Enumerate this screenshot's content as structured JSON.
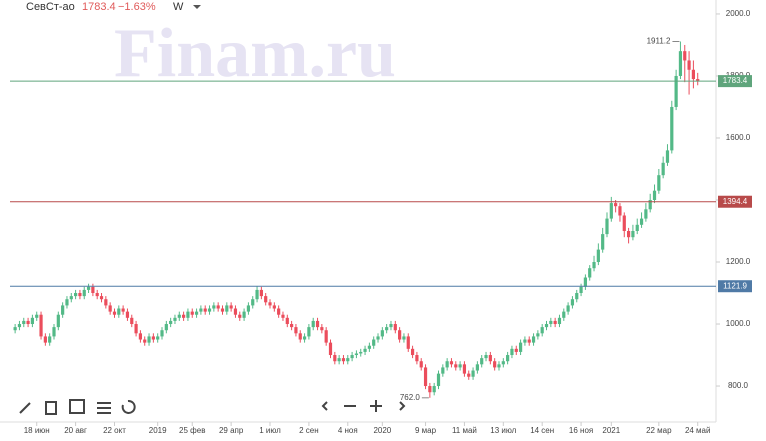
{
  "chart_data": {
    "type": "candlestick",
    "ticker": "СевСт-ао",
    "price": 1783.4,
    "change": "−1.63%",
    "interval": "W",
    "watermark": "Finam.ru",
    "up_color": "#53b987",
    "down_color": "#eb4d5c",
    "ylim": [
      684,
      2045
    ],
    "yticks": [
      {
        "value": 800,
        "label": "800.0"
      },
      {
        "value": 1000,
        "label": "1000.0"
      },
      {
        "value": 1200,
        "label": "1200.0"
      },
      {
        "value": 1400,
        "label": "1400.0"
      },
      {
        "value": 1600,
        "label": "1600.0"
      },
      {
        "value": 1800,
        "label": "1800.0"
      },
      {
        "value": 2000,
        "label": "2000.0"
      }
    ],
    "xlim": [
      -3.5,
      162
    ],
    "xticks": [
      {
        "value": 5,
        "label": "18 июн"
      },
      {
        "value": 14,
        "label": "20 авг"
      },
      {
        "value": 23,
        "label": "22 окт"
      },
      {
        "value": 33,
        "label": "2019"
      },
      {
        "value": 41,
        "label": "25 фев"
      },
      {
        "value": 50,
        "label": "29 апр"
      },
      {
        "value": 59,
        "label": "1 июл"
      },
      {
        "value": 68,
        "label": "2 сен"
      },
      {
        "value": 77,
        "label": "4 ноя"
      },
      {
        "value": 85,
        "label": "2020"
      },
      {
        "value": 95,
        "label": "9 мар"
      },
      {
        "value": 104,
        "label": "11 май"
      },
      {
        "value": 113,
        "label": "13 июл"
      },
      {
        "value": 122,
        "label": "14 сен"
      },
      {
        "value": 131,
        "label": "16 ноя"
      },
      {
        "value": 138,
        "label": "2021"
      },
      {
        "value": 149,
        "label": "22 мар"
      },
      {
        "value": 158,
        "label": "24 май"
      }
    ],
    "levels": [
      {
        "value": 1783.4,
        "color": "#5fa57c"
      },
      {
        "value": 1394.4,
        "color": "#b84a4a"
      },
      {
        "value": 1121.9,
        "color": "#4f7aa6"
      }
    ],
    "annotations": [
      {
        "index": 154,
        "value": 1911.2
      },
      {
        "index": 96,
        "value": {
          "value": 762,
          "label": "762.0"
        }
      }
    ],
    "ohlc": [
      [
        980,
        1000,
        970,
        990
      ],
      [
        990,
        1010,
        980,
        1000
      ],
      [
        1000,
        1020,
        990,
        1010
      ],
      [
        1010,
        1020,
        990,
        1000
      ],
      [
        1000,
        1030,
        990,
        1020
      ],
      [
        1020,
        1040,
        1010,
        1030
      ],
      [
        1030,
        1040,
        950,
        960
      ],
      [
        960,
        970,
        930,
        940
      ],
      [
        940,
        970,
        930,
        960
      ],
      [
        960,
        1000,
        950,
        990
      ],
      [
        990,
        1040,
        980,
        1030
      ],
      [
        1030,
        1070,
        1020,
        1060
      ],
      [
        1060,
        1090,
        1050,
        1080
      ],
      [
        1080,
        1100,
        1070,
        1090
      ],
      [
        1090,
        1110,
        1080,
        1100
      ],
      [
        1100,
        1110,
        1080,
        1090
      ],
      [
        1090,
        1120,
        1080,
        1110
      ],
      [
        1110,
        1130,
        1100,
        1120
      ],
      [
        1120,
        1130,
        1090,
        1100
      ],
      [
        1100,
        1110,
        1080,
        1090
      ],
      [
        1090,
        1100,
        1070,
        1080
      ],
      [
        1080,
        1090,
        1050,
        1060
      ],
      [
        1060,
        1070,
        1030,
        1040
      ],
      [
        1040,
        1050,
        1020,
        1030
      ],
      [
        1030,
        1060,
        1020,
        1050
      ],
      [
        1050,
        1060,
        1030,
        1040
      ],
      [
        1040,
        1050,
        1010,
        1020
      ],
      [
        1020,
        1030,
        990,
        1000
      ],
      [
        1000,
        1010,
        960,
        970
      ],
      [
        970,
        980,
        940,
        950
      ],
      [
        950,
        960,
        930,
        940
      ],
      [
        940,
        970,
        930,
        960
      ],
      [
        960,
        970,
        940,
        950
      ],
      [
        950,
        970,
        940,
        960
      ],
      [
        960,
        990,
        950,
        980
      ],
      [
        980,
        1010,
        970,
        1000
      ],
      [
        1000,
        1020,
        990,
        1010
      ],
      [
        1010,
        1030,
        1000,
        1020
      ],
      [
        1020,
        1040,
        1010,
        1030
      ],
      [
        1030,
        1040,
        1010,
        1020
      ],
      [
        1020,
        1050,
        1010,
        1040
      ],
      [
        1040,
        1050,
        1020,
        1030
      ],
      [
        1030,
        1050,
        1020,
        1040
      ],
      [
        1040,
        1060,
        1030,
        1050
      ],
      [
        1050,
        1060,
        1030,
        1040
      ],
      [
        1040,
        1060,
        1030,
        1050
      ],
      [
        1050,
        1070,
        1040,
        1060
      ],
      [
        1060,
        1070,
        1040,
        1050
      ],
      [
        1050,
        1060,
        1030,
        1040
      ],
      [
        1040,
        1070,
        1030,
        1060
      ],
      [
        1060,
        1070,
        1040,
        1050
      ],
      [
        1050,
        1060,
        1020,
        1030
      ],
      [
        1030,
        1040,
        1010,
        1020
      ],
      [
        1020,
        1050,
        1010,
        1040
      ],
      [
        1040,
        1070,
        1030,
        1060
      ],
      [
        1060,
        1090,
        1050,
        1080
      ],
      [
        1080,
        1122,
        1070,
        1110
      ],
      [
        1110,
        1120,
        1080,
        1090
      ],
      [
        1090,
        1100,
        1060,
        1070
      ],
      [
        1070,
        1080,
        1050,
        1060
      ],
      [
        1060,
        1070,
        1040,
        1050
      ],
      [
        1050,
        1060,
        1020,
        1030
      ],
      [
        1030,
        1040,
        1010,
        1020
      ],
      [
        1020,
        1030,
        990,
        1000
      ],
      [
        1000,
        1010,
        980,
        990
      ],
      [
        990,
        1000,
        960,
        970
      ],
      [
        970,
        980,
        940,
        950
      ],
      [
        950,
        970,
        940,
        960
      ],
      [
        960,
        1000,
        950,
        990
      ],
      [
        990,
        1020,
        980,
        1010
      ],
      [
        1010,
        1020,
        980,
        990
      ],
      [
        990,
        1000,
        970,
        980
      ],
      [
        980,
        990,
        930,
        940
      ],
      [
        940,
        950,
        890,
        900
      ],
      [
        900,
        910,
        870,
        880
      ],
      [
        880,
        900,
        870,
        890
      ],
      [
        890,
        900,
        870,
        880
      ],
      [
        880,
        900,
        870,
        890
      ],
      [
        890,
        910,
        880,
        900
      ],
      [
        900,
        915,
        890,
        905
      ],
      [
        905,
        920,
        895,
        910
      ],
      [
        910,
        930,
        900,
        920
      ],
      [
        920,
        940,
        910,
        930
      ],
      [
        930,
        960,
        920,
        950
      ],
      [
        950,
        970,
        940,
        960
      ],
      [
        960,
        990,
        950,
        980
      ],
      [
        980,
        1000,
        970,
        990
      ],
      [
        990,
        1010,
        980,
        1000
      ],
      [
        1000,
        1010,
        970,
        980
      ],
      [
        980,
        990,
        940,
        950
      ],
      [
        950,
        970,
        940,
        960
      ],
      [
        960,
        970,
        910,
        920
      ],
      [
        920,
        930,
        890,
        900
      ],
      [
        900,
        910,
        870,
        880
      ],
      [
        880,
        890,
        850,
        860
      ],
      [
        860,
        870,
        790,
        800
      ],
      [
        800,
        810,
        762,
        780
      ],
      [
        780,
        810,
        770,
        800
      ],
      [
        800,
        850,
        790,
        840
      ],
      [
        840,
        870,
        830,
        860
      ],
      [
        860,
        890,
        850,
        880
      ],
      [
        880,
        890,
        860,
        870
      ],
      [
        870,
        880,
        850,
        860
      ],
      [
        860,
        880,
        850,
        870
      ],
      [
        870,
        880,
        830,
        840
      ],
      [
        840,
        850,
        820,
        830
      ],
      [
        830,
        860,
        820,
        850
      ],
      [
        850,
        880,
        840,
        870
      ],
      [
        870,
        900,
        860,
        890
      ],
      [
        890,
        910,
        880,
        900
      ],
      [
        900,
        910,
        870,
        880
      ],
      [
        880,
        890,
        850,
        860
      ],
      [
        860,
        880,
        850,
        870
      ],
      [
        870,
        890,
        860,
        880
      ],
      [
        880,
        910,
        870,
        900
      ],
      [
        900,
        930,
        890,
        920
      ],
      [
        920,
        930,
        900,
        910
      ],
      [
        910,
        950,
        900,
        940
      ],
      [
        940,
        960,
        930,
        950
      ],
      [
        950,
        960,
        930,
        940
      ],
      [
        940,
        970,
        930,
        960
      ],
      [
        960,
        980,
        950,
        970
      ],
      [
        970,
        1000,
        960,
        990
      ],
      [
        990,
        1010,
        980,
        1000
      ],
      [
        1000,
        1020,
        990,
        1010
      ],
      [
        1010,
        1020,
        990,
        1000
      ],
      [
        1000,
        1030,
        990,
        1020
      ],
      [
        1020,
        1050,
        1010,
        1040
      ],
      [
        1040,
        1070,
        1030,
        1060
      ],
      [
        1060,
        1090,
        1050,
        1080
      ],
      [
        1080,
        1110,
        1070,
        1100
      ],
      [
        1100,
        1130,
        1090,
        1120
      ],
      [
        1120,
        1160,
        1110,
        1150
      ],
      [
        1150,
        1190,
        1140,
        1180
      ],
      [
        1180,
        1220,
        1170,
        1200
      ],
      [
        1200,
        1260,
        1190,
        1240
      ],
      [
        1240,
        1310,
        1230,
        1290
      ],
      [
        1290,
        1360,
        1280,
        1340
      ],
      [
        1340,
        1410,
        1330,
        1390
      ],
      [
        1390,
        1400,
        1360,
        1380
      ],
      [
        1380,
        1390,
        1330,
        1350
      ],
      [
        1350,
        1360,
        1280,
        1300
      ],
      [
        1300,
        1310,
        1260,
        1280
      ],
      [
        1280,
        1320,
        1270,
        1300
      ],
      [
        1300,
        1340,
        1290,
        1320
      ],
      [
        1320,
        1360,
        1310,
        1340
      ],
      [
        1340,
        1390,
        1330,
        1370
      ],
      [
        1370,
        1420,
        1360,
        1400
      ],
      [
        1400,
        1450,
        1390,
        1430
      ],
      [
        1430,
        1500,
        1420,
        1480
      ],
      [
        1480,
        1540,
        1470,
        1520
      ],
      [
        1520,
        1580,
        1510,
        1560
      ],
      [
        1560,
        1720,
        1550,
        1700
      ],
      [
        1700,
        1820,
        1690,
        1800
      ],
      [
        1800,
        1911.2,
        1790,
        1880
      ],
      [
        1880,
        1900,
        1780,
        1850
      ],
      [
        1850,
        1880,
        1740,
        1820
      ],
      [
        1820,
        1850,
        1760,
        1790
      ],
      [
        1790,
        1810,
        1770,
        1783.4
      ]
    ]
  }
}
